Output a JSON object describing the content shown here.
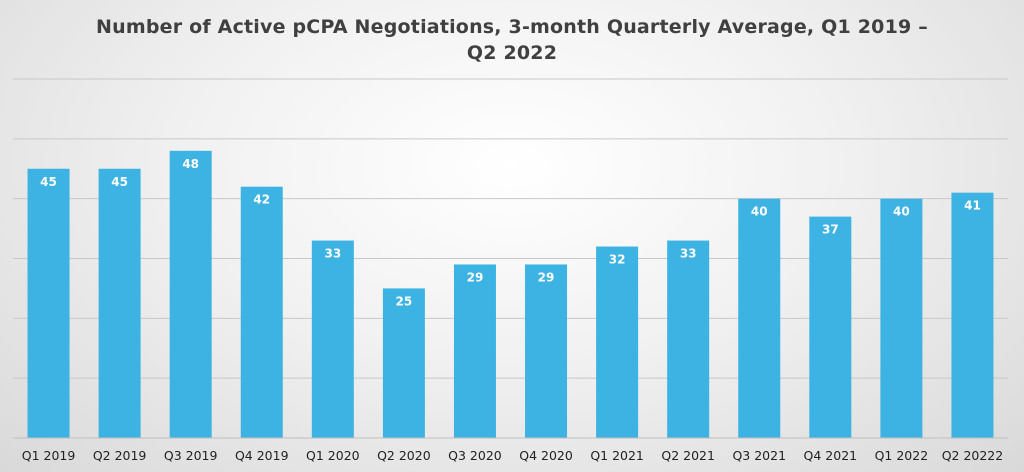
{
  "chart_data": {
    "type": "bar",
    "title": "Number of Active pCPA Negotiations, 3-month Quarterly Average, Q1 2019 – Q2 2022",
    "categories": [
      "Q1 2019",
      "Q2 2019",
      "Q3 2019",
      "Q4 2019",
      "Q1 2020",
      "Q2 2020",
      "Q3 2020",
      "Q4 2020",
      "Q1 2021",
      "Q2 2021",
      "Q3 2021",
      "Q4 2021",
      "Q1 2022",
      "Q2 20222"
    ],
    "values": [
      45,
      45,
      48,
      42,
      33,
      25,
      29,
      29,
      32,
      33,
      40,
      37,
      40,
      41
    ],
    "xlabel": "",
    "ylabel": "",
    "ylim": [
      0,
      60
    ],
    "grid": true,
    "legend": "none",
    "bar_color": "#3cb3e3"
  }
}
